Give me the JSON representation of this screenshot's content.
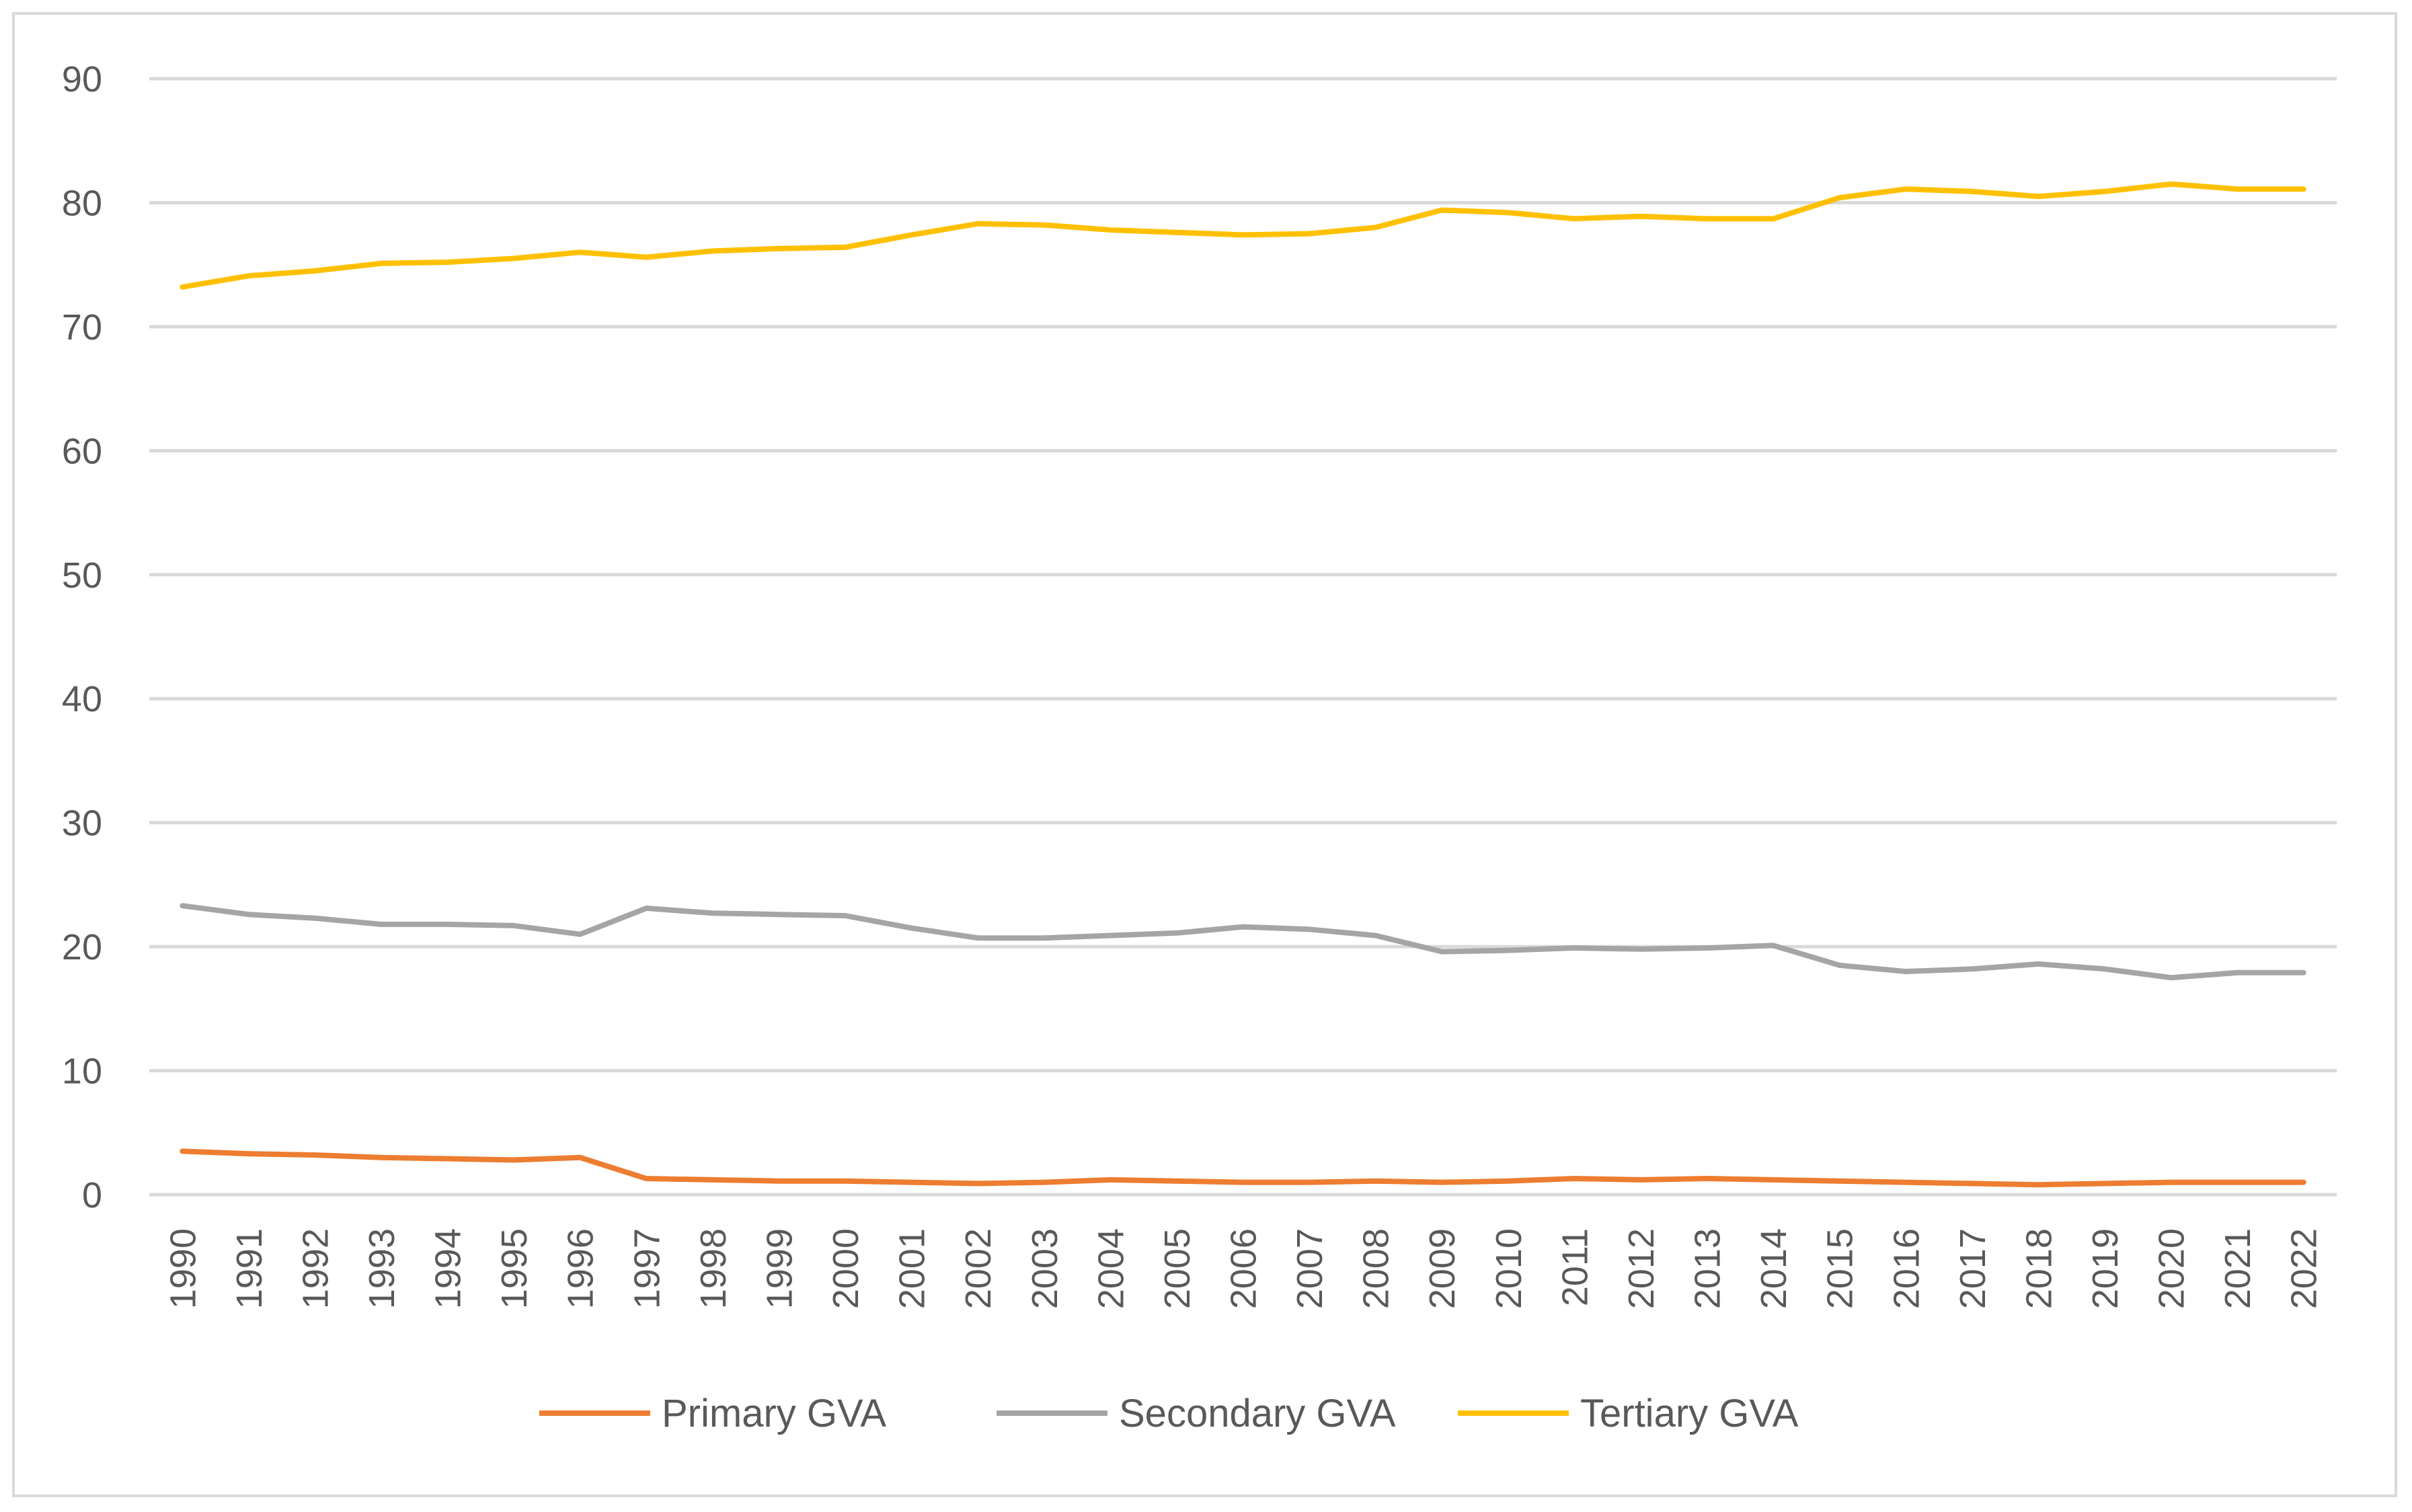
{
  "chart_data": {
    "type": "line",
    "title": "",
    "xlabel": "",
    "ylabel": "",
    "ylim": [
      0,
      90
    ],
    "yticks": [
      0,
      10,
      20,
      30,
      40,
      50,
      60,
      70,
      80,
      90
    ],
    "grid": true,
    "legend_position": "bottom",
    "categories": [
      "1990",
      "1991",
      "1992",
      "1993",
      "1994",
      "1995",
      "1996",
      "1997",
      "1998",
      "1999",
      "2000",
      "2001",
      "2002",
      "2003",
      "2004",
      "2005",
      "2006",
      "2007",
      "2008",
      "2009",
      "2010",
      "2011",
      "2012",
      "2013",
      "2014",
      "2015",
      "2016",
      "2017",
      "2018",
      "2019",
      "2020",
      "2021",
      "2022"
    ],
    "series": [
      {
        "name": "Primary GVA",
        "color": "#ed7d31",
        "values": [
          3.5,
          3.3,
          3.2,
          3.0,
          2.9,
          2.8,
          3.0,
          1.3,
          1.2,
          1.1,
          1.1,
          1.0,
          0.9,
          1.0,
          1.2,
          1.1,
          1.0,
          1.0,
          1.1,
          1.0,
          1.1,
          1.3,
          1.2,
          1.3,
          1.2,
          1.1,
          1.0,
          0.9,
          0.8,
          0.9,
          1.0,
          1.0,
          1.0
        ]
      },
      {
        "name": "Secondary GVA",
        "color": "#a5a5a5",
        "values": [
          23.3,
          22.6,
          22.3,
          21.8,
          21.8,
          21.7,
          21.0,
          23.1,
          22.7,
          22.6,
          22.5,
          21.5,
          20.7,
          20.7,
          20.9,
          21.1,
          21.6,
          21.4,
          20.9,
          19.6,
          19.7,
          19.9,
          19.8,
          19.9,
          20.1,
          18.5,
          18.0,
          18.2,
          18.6,
          18.2,
          17.5,
          17.9,
          17.9
        ]
      },
      {
        "name": "Tertiary GVA",
        "color": "#ffc000",
        "values": [
          73.2,
          74.1,
          74.5,
          75.1,
          75.2,
          75.5,
          76.0,
          75.6,
          76.1,
          76.3,
          76.4,
          77.4,
          78.3,
          78.2,
          77.8,
          77.6,
          77.4,
          77.5,
          78.0,
          79.4,
          79.2,
          78.7,
          78.9,
          78.7,
          78.7,
          80.4,
          81.1,
          80.9,
          80.5,
          80.9,
          81.5,
          81.1,
          81.1
        ]
      }
    ]
  }
}
